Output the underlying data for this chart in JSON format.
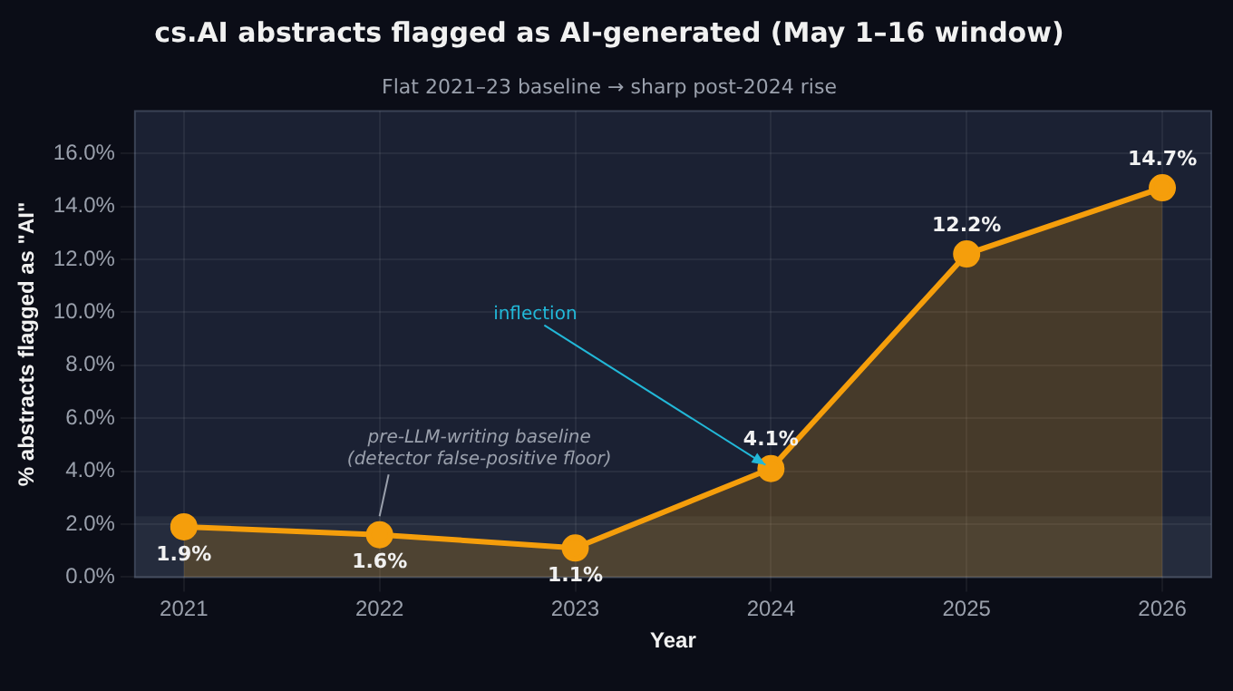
{
  "chart_data": {
    "type": "area",
    "title": "cs.AI abstracts flagged as AI-generated (May 1–16 window)",
    "subtitle": "Flat 2021–23 baseline → sharp post-2024 rise",
    "xlabel": "Year",
    "ylabel": "% abstracts flagged as \"AI\"",
    "x": [
      2021,
      2022,
      2023,
      2024,
      2025,
      2026
    ],
    "series": [
      {
        "color": "#f59e0b",
        "values": [
          1.9,
          1.6,
          1.1,
          4.1,
          12.2,
          14.7
        ],
        "value_labels": [
          "1.9%",
          "1.6%",
          "1.1%",
          "4.1%",
          "12.2%",
          "14.7%"
        ]
      }
    ],
    "xlim": [
      2020.75,
      2026.25
    ],
    "xticks": [
      2021,
      2022,
      2023,
      2024,
      2025,
      2026
    ],
    "ylim": [
      0,
      17.6
    ],
    "yticks": [
      {
        "value": 0,
        "label": "0.0%"
      },
      {
        "value": 2,
        "label": "2.0%"
      },
      {
        "value": 4,
        "label": "4.0%"
      },
      {
        "value": 6,
        "label": "6.0%"
      },
      {
        "value": 8,
        "label": "8.0%"
      },
      {
        "value": 10,
        "label": "10.0%"
      },
      {
        "value": 12,
        "label": "12.0%"
      },
      {
        "value": 14,
        "label": "14.0%"
      },
      {
        "value": 16,
        "label": "16.0%"
      }
    ],
    "bands": [
      {
        "axis": "y",
        "from": 0,
        "to": 2.3,
        "color": "#252c3d"
      }
    ],
    "annotations": [
      {
        "text": "inflection",
        "x": 2024,
        "y": 4.1
      },
      {
        "text": "pre-LLM-writing baseline\n(detector false-positive floor)",
        "x": 2022,
        "y": 2.3
      }
    ],
    "grid": true,
    "legend": false,
    "marker": "circle",
    "line_style": "solid"
  }
}
